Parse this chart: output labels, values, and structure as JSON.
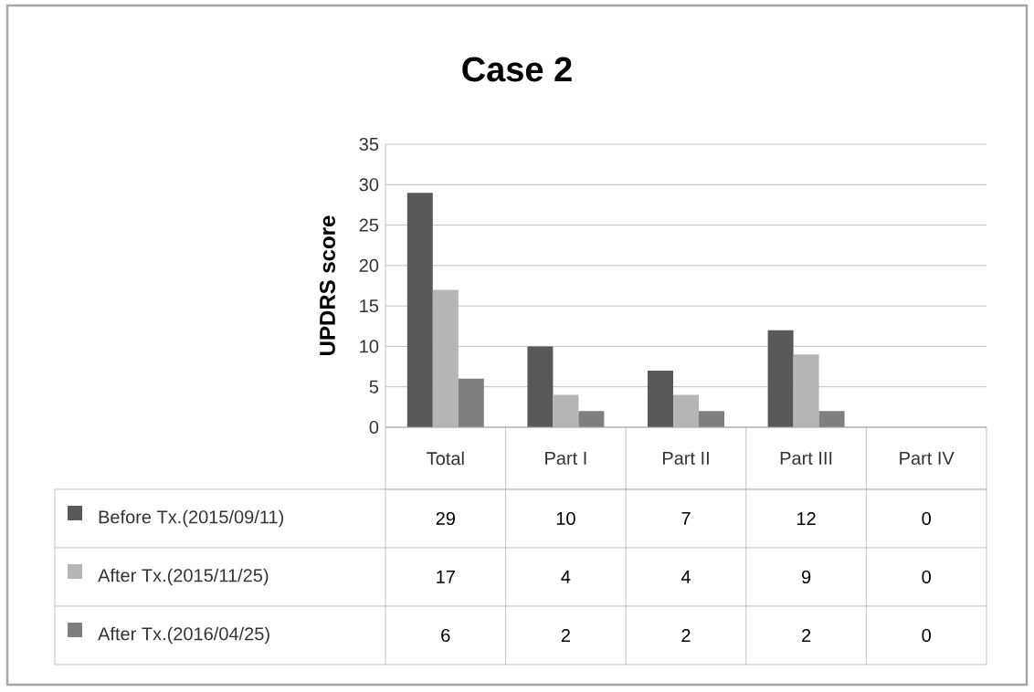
{
  "chart_data": {
    "type": "bar",
    "title": "Case 2",
    "ylabel": "UPDRS score",
    "categories": [
      "Total",
      "Part I",
      "Part II",
      "Part III",
      "Part IV"
    ],
    "series": [
      {
        "name": "Before Tx.(2015/09/11)",
        "color": "#595959",
        "values": [
          29,
          10,
          7,
          12,
          0
        ]
      },
      {
        "name": "After Tx.(2015/11/25)",
        "color": "#b5b5b5",
        "values": [
          17,
          4,
          4,
          9,
          0
        ]
      },
      {
        "name": "After Tx.(2016/04/25)",
        "color": "#7f7f7f",
        "values": [
          6,
          2,
          2,
          2,
          0
        ]
      }
    ],
    "ylim": [
      0,
      35
    ],
    "yticks": [
      0,
      5,
      10,
      15,
      20,
      25,
      30,
      35
    ],
    "grid": "y",
    "legend": "bottom",
    "data_labels": true
  }
}
